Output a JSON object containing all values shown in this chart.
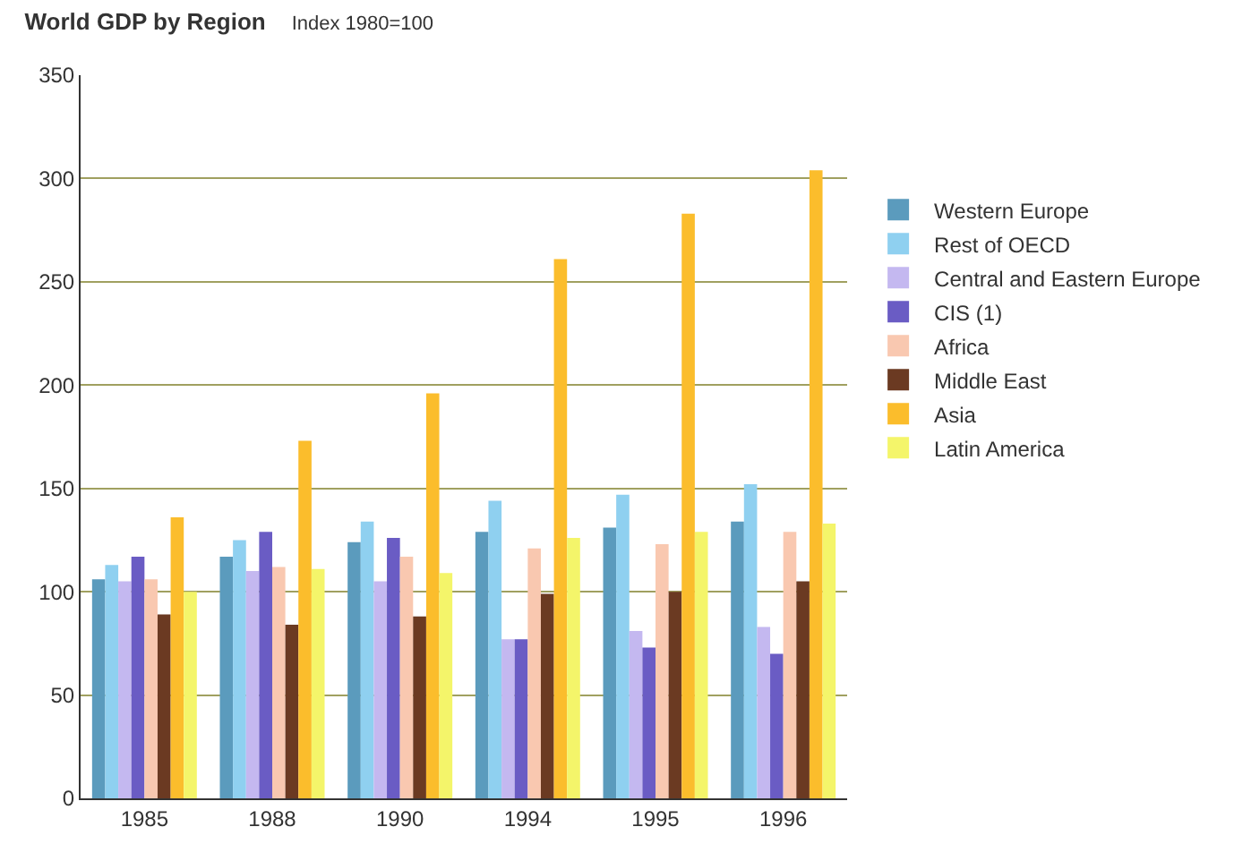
{
  "chart_data": {
    "type": "bar",
    "title": "World GDP by Region",
    "subtitle": "Index 1980=100",
    "categories": [
      "1985",
      "1988",
      "1990",
      "1994",
      "1995",
      "1996"
    ],
    "series": [
      {
        "name": "Western Europe",
        "color": "#5b9bbd",
        "values": [
          106,
          117,
          124,
          129,
          131,
          134
        ]
      },
      {
        "name": "Rest of OECD",
        "color": "#8fd0f0",
        "values": [
          113,
          125,
          134,
          144,
          147,
          152
        ]
      },
      {
        "name": "Central and Eastern Europe",
        "color": "#c4b8f0",
        "values": [
          105,
          110,
          105,
          77,
          81,
          83
        ]
      },
      {
        "name": "CIS (1)",
        "color": "#6a5cc4",
        "values": [
          117,
          129,
          126,
          77,
          73,
          70
        ]
      },
      {
        "name": "Africa",
        "color": "#f9c8b0",
        "values": [
          106,
          112,
          117,
          121,
          123,
          129
        ]
      },
      {
        "name": "Middle East",
        "color": "#6b3a22",
        "values": [
          89,
          84,
          88,
          99,
          100,
          105
        ]
      },
      {
        "name": "Asia",
        "color": "#fbbd2c",
        "values": [
          136,
          173,
          196,
          261,
          283,
          304
        ]
      },
      {
        "name": "Latin America",
        "color": "#f4f56a",
        "values": [
          100,
          111,
          109,
          126,
          129,
          133
        ]
      }
    ],
    "ylim": [
      0,
      350
    ],
    "yticks": [
      0,
      50,
      100,
      150,
      200,
      250,
      300,
      350
    ],
    "grid": "y",
    "legend": "right"
  }
}
